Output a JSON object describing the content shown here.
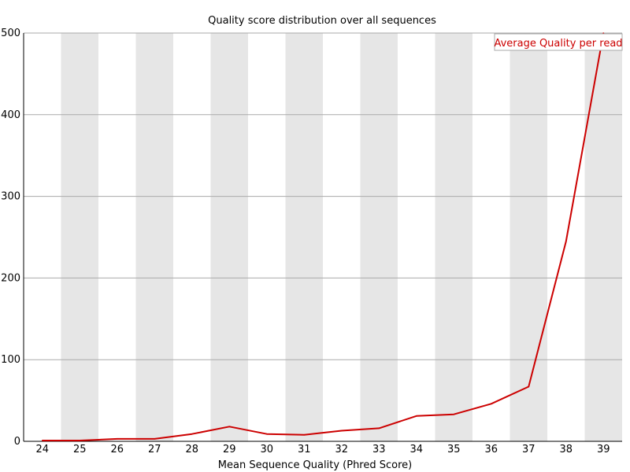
{
  "chart_data": {
    "type": "line",
    "title": "Quality score distribution over all sequences",
    "xlabel": "Mean Sequence Quality (Phred Score)",
    "ylabel": "",
    "categories": [
      "24",
      "25",
      "26",
      "27",
      "28",
      "29",
      "30",
      "31",
      "32",
      "33",
      "34",
      "35",
      "36",
      "37",
      "38",
      "39"
    ],
    "ylim": [
      0,
      500
    ],
    "yticks": [
      0,
      100,
      200,
      300,
      400,
      500
    ],
    "grid": true,
    "legend_position": "top-right",
    "series": [
      {
        "name": "Average Quality per read",
        "color": "#cc0000",
        "values": [
          1,
          1,
          3,
          3,
          9,
          18,
          9,
          8,
          13,
          16,
          31,
          33,
          46,
          67,
          245,
          500
        ]
      }
    ],
    "band_color": "#e6e6e6",
    "gridline_color": "#aaaaaa"
  }
}
